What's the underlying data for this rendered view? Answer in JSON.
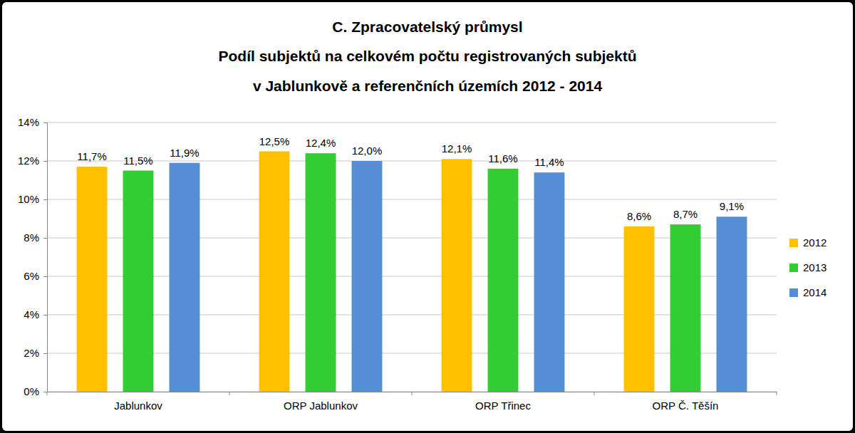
{
  "chart_data": {
    "type": "bar",
    "title": [
      "C. Zpracovatelský průmysl",
      "Podíl subjektů na celkovém počtu registrovaných subjektů",
      "v Jablunkově a referenčních územích 2012 - 2014"
    ],
    "categories": [
      "Jablunkov",
      "ORP Jablunkov",
      "ORP Třinec",
      "ORP Č. Těšín"
    ],
    "series": [
      {
        "name": "2012",
        "color": "#ffc000",
        "values": [
          11.7,
          12.5,
          12.1,
          8.6
        ],
        "value_labels": [
          "11,7%",
          "12,5%",
          "12,1%",
          "8,6%"
        ]
      },
      {
        "name": "2013",
        "color": "#33cc33",
        "values": [
          11.5,
          12.4,
          11.6,
          8.7
        ],
        "value_labels": [
          "11,5%",
          "12,4%",
          "11,6%",
          "8,7%"
        ]
      },
      {
        "name": "2014",
        "color": "#558ed5",
        "values": [
          11.9,
          12.0,
          11.4,
          9.1
        ],
        "value_labels": [
          "11,9%",
          "12,0%",
          "11,4%",
          "9,1%"
        ]
      }
    ],
    "ylim": [
      0,
      14
    ],
    "yticks": [
      {
        "value": 0,
        "label": "0%"
      },
      {
        "value": 2,
        "label": "2%"
      },
      {
        "value": 4,
        "label": "4%"
      },
      {
        "value": 6,
        "label": "6%"
      },
      {
        "value": 8,
        "label": "8%"
      },
      {
        "value": 10,
        "label": "10%"
      },
      {
        "value": 12,
        "label": "12%"
      },
      {
        "value": 14,
        "label": "14%"
      }
    ],
    "grid": true,
    "data_labels": true,
    "legend": "right"
  }
}
